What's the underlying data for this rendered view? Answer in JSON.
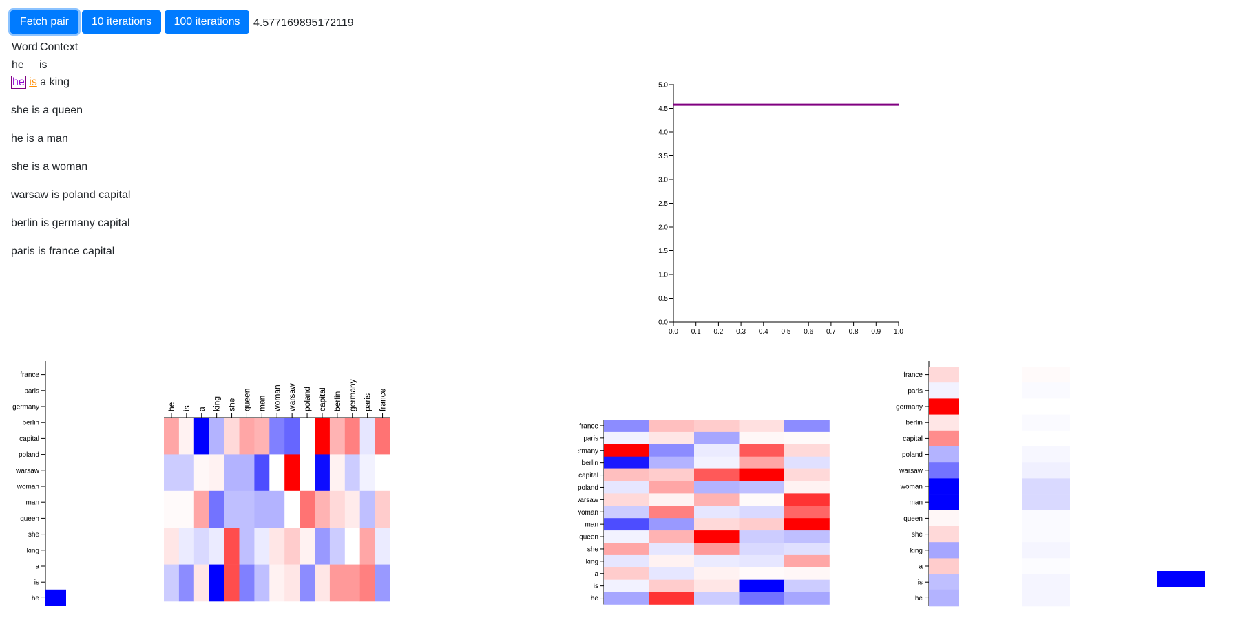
{
  "toolbar": {
    "fetch_label": "Fetch pair",
    "iter10_label": "10 iterations",
    "iter100_label": "100 iterations",
    "loss_value": "4.577169895172119"
  },
  "pair": {
    "word_header": "Word",
    "context_header": "Context",
    "word": "he",
    "context": "is"
  },
  "corpus": [
    {
      "w": "he",
      "c": "is",
      "rest": "a king"
    },
    {
      "text": "she is a queen"
    },
    {
      "text": "he is a man"
    },
    {
      "text": "she is a woman"
    },
    {
      "text": "warsaw is poland capital"
    },
    {
      "text": "berlin is germany capital"
    },
    {
      "text": "paris is france capital"
    }
  ],
  "chart_data": [
    {
      "type": "line",
      "title": "",
      "xlabel": "",
      "ylabel": "",
      "xlim": [
        0,
        1
      ],
      "ylim": [
        0,
        5
      ],
      "xticks": [
        "0.0",
        "0.1",
        "0.2",
        "0.3",
        "0.4",
        "0.5",
        "0.6",
        "0.7",
        "0.8",
        "0.9",
        "1.0"
      ],
      "yticks": [
        "0.0",
        "0.5",
        "1.0",
        "1.5",
        "2.0",
        "2.5",
        "3.0",
        "3.5",
        "4.0",
        "4.5",
        "5.0"
      ],
      "series": [
        {
          "color": "#800080",
          "x": [
            0,
            1
          ],
          "y": [
            4.577,
            4.577
          ]
        }
      ]
    },
    {
      "type": "heatmap",
      "rows": [
        "france",
        "paris",
        "germany",
        "berlin",
        "capital",
        "poland",
        "warsaw",
        "woman",
        "man",
        "queen",
        "she",
        "king",
        "a",
        "is",
        "he"
      ],
      "one_hot_row": "he"
    },
    {
      "type": "heatmap",
      "cols": [
        "he",
        "is",
        "a",
        "king",
        "she",
        "queen",
        "man",
        "woman",
        "warsaw",
        "poland",
        "capital",
        "berlin",
        "germany",
        "paris",
        "france"
      ],
      "values": [
        [
          0.35,
          0.05,
          -1.0,
          -0.3,
          0.15,
          0.35,
          0.3,
          -0.5,
          -0.6,
          0.0,
          1.0,
          0.3,
          0.5,
          -0.1,
          0.55
        ],
        [
          -0.2,
          -0.2,
          0.03,
          0.05,
          -0.3,
          -0.3,
          -0.7,
          0.0,
          1.0,
          0.0,
          -0.95,
          0.05,
          -0.2,
          -0.05,
          0.0
        ],
        [
          0.02,
          0.02,
          0.35,
          -0.55,
          -0.25,
          -0.25,
          -0.3,
          -0.3,
          0.0,
          0.55,
          0.3,
          0.15,
          0.08,
          -0.25,
          0.2
        ],
        [
          0.1,
          -0.08,
          -0.15,
          -0.08,
          0.7,
          -0.25,
          -0.08,
          0.1,
          0.2,
          0.05,
          -0.4,
          -0.2,
          0.0,
          0.35,
          -0.08
        ],
        [
          -0.2,
          -0.45,
          0.1,
          -1.0,
          0.7,
          -0.5,
          -0.25,
          0.05,
          0.1,
          -0.45,
          0.1,
          0.4,
          0.4,
          0.5,
          -0.4
        ]
      ],
      "output_weights": [
        0.3,
        -0.18,
        0.01,
        0.1,
        -0.18
      ]
    },
    {
      "type": "heatmap",
      "rows": [
        "france",
        "paris",
        "germany",
        "berlin",
        "capital",
        "poland",
        "warsaw",
        "woman",
        "man",
        "queen",
        "she",
        "king",
        "a",
        "is",
        "he"
      ],
      "values": [
        [
          -0.45,
          0.25,
          0.2,
          0.12,
          -0.45
        ],
        [
          -0.05,
          0.1,
          -0.35,
          0.03,
          0.02
        ],
        [
          1.0,
          -0.45,
          -0.08,
          0.65,
          0.15
        ],
        [
          -0.9,
          -0.3,
          -0.05,
          0.35,
          -0.12
        ],
        [
          0.25,
          0.2,
          0.65,
          1.0,
          0.15
        ],
        [
          -0.1,
          0.35,
          -0.3,
          -0.25,
          0.05
        ],
        [
          0.15,
          0.05,
          0.3,
          0.02,
          0.8
        ],
        [
          -0.2,
          0.5,
          -0.1,
          -0.15,
          0.6
        ],
        [
          -0.7,
          -0.4,
          0.15,
          0.2,
          1.0
        ],
        [
          -0.05,
          0.3,
          1.0,
          -0.2,
          -0.25
        ],
        [
          0.35,
          -0.1,
          0.4,
          -0.15,
          -0.12
        ],
        [
          -0.1,
          0.05,
          -0.08,
          -0.1,
          0.35
        ],
        [
          0.2,
          -0.1,
          0.05,
          0.02,
          0.03
        ],
        [
          -0.05,
          0.2,
          0.1,
          -1.0,
          -0.2
        ],
        [
          -0.35,
          0.8,
          -0.2,
          -0.55,
          -0.35
        ]
      ]
    },
    {
      "type": "heatmap",
      "rows": [
        "france",
        "paris",
        "germany",
        "berlin",
        "capital",
        "poland",
        "warsaw",
        "woman",
        "man",
        "queen",
        "she",
        "king",
        "a",
        "is",
        "he"
      ],
      "values": [
        0.15,
        -0.05,
        1.0,
        0.1,
        0.45,
        -0.3,
        -0.55,
        -1.0,
        -1.0,
        0.03,
        0.15,
        -0.35,
        0.2,
        -0.25,
        -0.3
      ],
      "softmax_values": [
        0.02,
        -0.02,
        0.0,
        -0.02,
        0.0,
        -0.03,
        -0.06,
        -0.15,
        -0.15,
        -0.02,
        -0.02,
        -0.04,
        -0.01,
        -0.04,
        -0.04
      ],
      "target_row": "is"
    }
  ]
}
